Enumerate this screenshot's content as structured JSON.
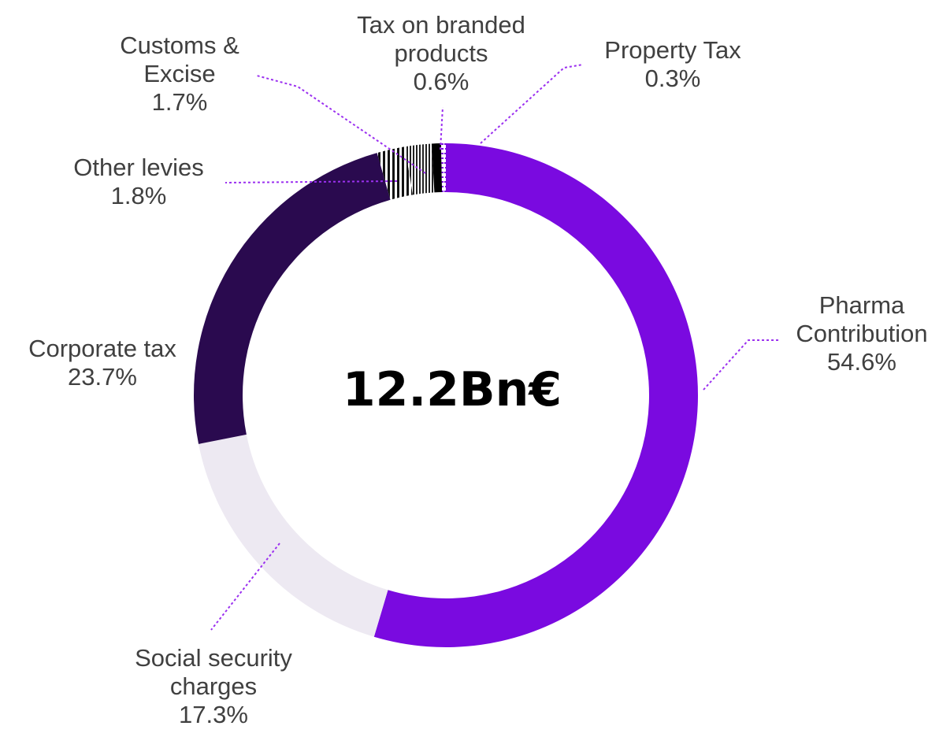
{
  "chart_data": {
    "type": "pie",
    "variant": "donut",
    "center_label": "12.2Bn€",
    "slices": [
      {
        "name_lines": [
          "Pharma",
          "Contribution"
        ],
        "value_label": "54.6%",
        "value": 54.6,
        "color": "#7a0ae0"
      },
      {
        "name_lines": [
          "Social security",
          "charges"
        ],
        "value_label": "17.3%",
        "value": 17.3,
        "color": "#ede9f2"
      },
      {
        "name_lines": [
          "Corporate tax"
        ],
        "value_label": "23.7%",
        "value": 23.7,
        "color": "#2a0a4f"
      },
      {
        "name_lines": [
          "Other levies"
        ],
        "value_label": "1.8%",
        "value": 1.8,
        "color": "#ffffff",
        "pattern": "vertical-stripes"
      },
      {
        "name_lines": [
          "Customs &",
          "Excise"
        ],
        "value_label": "1.7%",
        "value": 1.7,
        "color": "#ffffff",
        "pattern": "vertical-stripes-dense"
      },
      {
        "name_lines": [
          "Tax on branded",
          "products"
        ],
        "value_label": "0.6%",
        "value": 0.6,
        "color": "#000000"
      },
      {
        "name_lines": [
          "Property Tax"
        ],
        "value_label": "0.3%",
        "value": 0.3,
        "color": "#ffffff",
        "pattern": "dashes"
      }
    ],
    "start": "top",
    "direction": "clockwise",
    "leader_line_color": "#9b30f0",
    "legend": "none"
  }
}
